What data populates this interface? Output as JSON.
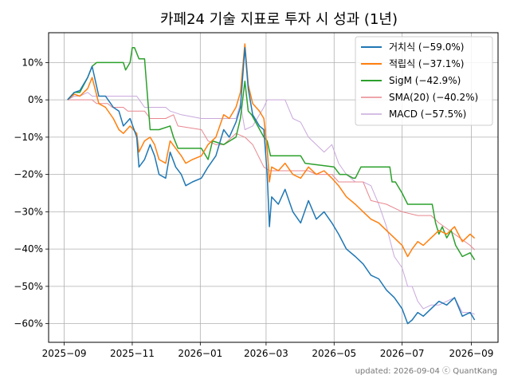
{
  "chart_data": {
    "type": "line",
    "title": "카페24 기술 지표로 투자 시 성과 (1년)",
    "xlabel": "",
    "ylabel": "",
    "footer": "updated: 2026-09-04 ⓒ QuantKang",
    "x_range": [
      "2025-08-18",
      "2026-09-25"
    ],
    "ylim": [
      -65,
      18
    ],
    "yticks": [
      10,
      0,
      -10,
      -20,
      -30,
      -40,
      -50,
      -60
    ],
    "ytick_labels": [
      "10%",
      "0%",
      "−10%",
      "−20%",
      "−30%",
      "−40%",
      "−50%",
      "−60%"
    ],
    "xticks": [
      "2025-09-01",
      "2025-11-01",
      "2026-01-01",
      "2026-03-01",
      "2026-05-01",
      "2026-07-01",
      "2026-09-01"
    ],
    "xtick_labels": [
      "2025−09",
      "2025−11",
      "2026−01",
      "2026−03",
      "2026−05",
      "2026−07",
      "2026−09"
    ],
    "grid": true,
    "legend_position": "top-right",
    "series": [
      {
        "name": "거치식 (−59.0%)",
        "color": "#1f77b4",
        "width": 1.5,
        "points": [
          [
            "2025-09-04",
            0
          ],
          [
            "2025-09-10",
            2
          ],
          [
            "2025-09-15",
            2.5
          ],
          [
            "2025-09-22",
            6
          ],
          [
            "2025-09-26",
            9
          ],
          [
            "2025-10-02",
            1
          ],
          [
            "2025-10-08",
            1
          ],
          [
            "2025-10-15",
            -2
          ],
          [
            "2025-10-20",
            -3
          ],
          [
            "2025-10-24",
            -7
          ],
          [
            "2025-10-30",
            -5
          ],
          [
            "2025-11-05",
            -10
          ],
          [
            "2025-11-07",
            -18
          ],
          [
            "2025-11-12",
            -16
          ],
          [
            "2025-11-17",
            -12
          ],
          [
            "2025-11-21",
            -15
          ],
          [
            "2025-11-25",
            -20
          ],
          [
            "2025-12-01",
            -21
          ],
          [
            "2025-12-05",
            -14
          ],
          [
            "2025-12-10",
            -18
          ],
          [
            "2025-12-15",
            -20
          ],
          [
            "2025-12-19",
            -23
          ],
          [
            "2025-12-25",
            -22
          ],
          [
            "2026-01-02",
            -21
          ],
          [
            "2026-01-08",
            -18
          ],
          [
            "2026-01-15",
            -15
          ],
          [
            "2026-01-22",
            -8
          ],
          [
            "2026-01-27",
            -10
          ],
          [
            "2026-02-02",
            -6
          ],
          [
            "2026-02-06",
            -2
          ],
          [
            "2026-02-10",
            14
          ],
          [
            "2026-02-13",
            3
          ],
          [
            "2026-02-17",
            -4
          ],
          [
            "2026-02-23",
            -7
          ],
          [
            "2026-02-27",
            -8
          ],
          [
            "2026-03-02",
            -20
          ],
          [
            "2026-03-04",
            -34
          ],
          [
            "2026-03-06",
            -26
          ],
          [
            "2026-03-12",
            -28
          ],
          [
            "2026-03-18",
            -24
          ],
          [
            "2026-03-25",
            -30
          ],
          [
            "2026-04-01",
            -33
          ],
          [
            "2026-04-08",
            -27
          ],
          [
            "2026-04-15",
            -32
          ],
          [
            "2026-04-22",
            -30
          ],
          [
            "2026-04-29",
            -33
          ],
          [
            "2026-05-05",
            -36
          ],
          [
            "2026-05-12",
            -40
          ],
          [
            "2026-05-20",
            -42
          ],
          [
            "2026-05-27",
            -44
          ],
          [
            "2026-06-03",
            -47
          ],
          [
            "2026-06-10",
            -48
          ],
          [
            "2026-06-17",
            -51
          ],
          [
            "2026-06-24",
            -53
          ],
          [
            "2026-07-01",
            -56
          ],
          [
            "2026-07-06",
            -60
          ],
          [
            "2026-07-10",
            -59
          ],
          [
            "2026-07-15",
            -57
          ],
          [
            "2026-07-20",
            -58
          ],
          [
            "2026-07-27",
            -56
          ],
          [
            "2026-08-03",
            -54
          ],
          [
            "2026-08-10",
            -55
          ],
          [
            "2026-08-17",
            -53
          ],
          [
            "2026-08-24",
            -58
          ],
          [
            "2026-08-31",
            -57
          ],
          [
            "2026-09-04",
            -59
          ]
        ]
      },
      {
        "name": "적립식 (−37.1%)",
        "color": "#ff7f0e",
        "width": 1.5,
        "points": [
          [
            "2025-09-04",
            0
          ],
          [
            "2025-09-10",
            1.5
          ],
          [
            "2025-09-15",
            1
          ],
          [
            "2025-09-22",
            3
          ],
          [
            "2025-09-26",
            6
          ],
          [
            "2025-10-02",
            -1
          ],
          [
            "2025-10-08",
            -2
          ],
          [
            "2025-10-15",
            -5
          ],
          [
            "2025-10-20",
            -8
          ],
          [
            "2025-10-24",
            -9
          ],
          [
            "2025-10-30",
            -7
          ],
          [
            "2025-11-05",
            -9
          ],
          [
            "2025-11-07",
            -14
          ],
          [
            "2025-11-12",
            -11
          ],
          [
            "2025-11-17",
            -10
          ],
          [
            "2025-11-21",
            -12
          ],
          [
            "2025-11-25",
            -16
          ],
          [
            "2025-12-01",
            -17
          ],
          [
            "2025-12-05",
            -11
          ],
          [
            "2025-12-10",
            -13
          ],
          [
            "2025-12-15",
            -15
          ],
          [
            "2025-12-19",
            -17
          ],
          [
            "2025-12-25",
            -16
          ],
          [
            "2026-01-02",
            -15
          ],
          [
            "2026-01-08",
            -12
          ],
          [
            "2026-01-15",
            -10
          ],
          [
            "2026-01-22",
            -4
          ],
          [
            "2026-01-27",
            -5
          ],
          [
            "2026-02-02",
            -2
          ],
          [
            "2026-02-06",
            2
          ],
          [
            "2026-02-10",
            15
          ],
          [
            "2026-02-13",
            4
          ],
          [
            "2026-02-17",
            -1
          ],
          [
            "2026-02-23",
            -3
          ],
          [
            "2026-02-27",
            -5
          ],
          [
            "2026-03-02",
            -13
          ],
          [
            "2026-03-04",
            -22
          ],
          [
            "2026-03-06",
            -18
          ],
          [
            "2026-03-12",
            -19
          ],
          [
            "2026-03-18",
            -17
          ],
          [
            "2026-03-25",
            -20
          ],
          [
            "2026-04-01",
            -21
          ],
          [
            "2026-04-08",
            -18
          ],
          [
            "2026-04-15",
            -20
          ],
          [
            "2026-04-22",
            -19
          ],
          [
            "2026-04-29",
            -21
          ],
          [
            "2026-05-05",
            -23
          ],
          [
            "2026-05-12",
            -26
          ],
          [
            "2026-05-20",
            -28
          ],
          [
            "2026-05-27",
            -30
          ],
          [
            "2026-06-03",
            -32
          ],
          [
            "2026-06-10",
            -33
          ],
          [
            "2026-06-17",
            -35
          ],
          [
            "2026-06-24",
            -37
          ],
          [
            "2026-07-01",
            -39
          ],
          [
            "2026-07-06",
            -42
          ],
          [
            "2026-07-10",
            -40
          ],
          [
            "2026-07-15",
            -38
          ],
          [
            "2026-07-20",
            -39
          ],
          [
            "2026-07-27",
            -37
          ],
          [
            "2026-08-03",
            -35
          ],
          [
            "2026-08-10",
            -36
          ],
          [
            "2026-08-17",
            -34
          ],
          [
            "2026-08-24",
            -38
          ],
          [
            "2026-08-31",
            -36
          ],
          [
            "2026-09-04",
            -37.1
          ]
        ]
      },
      {
        "name": "SigM (−42.9%)",
        "color": "#2ca02c",
        "width": 1.5,
        "points": [
          [
            "2025-09-04",
            0
          ],
          [
            "2025-09-10",
            2
          ],
          [
            "2025-09-15",
            2
          ],
          [
            "2025-09-22",
            6
          ],
          [
            "2025-09-26",
            9
          ],
          [
            "2025-09-30",
            10
          ],
          [
            "2025-10-24",
            10
          ],
          [
            "2025-10-26",
            8
          ],
          [
            "2025-10-30",
            10
          ],
          [
            "2025-11-01",
            14
          ],
          [
            "2025-11-03",
            14
          ],
          [
            "2025-11-07",
            11
          ],
          [
            "2025-11-12",
            11
          ],
          [
            "2025-11-17",
            -8
          ],
          [
            "2025-11-25",
            -8
          ],
          [
            "2025-12-05",
            -7
          ],
          [
            "2025-12-08",
            -10
          ],
          [
            "2025-12-12",
            -13
          ],
          [
            "2026-01-02",
            -13
          ],
          [
            "2026-01-08",
            -16
          ],
          [
            "2026-01-12",
            -11
          ],
          [
            "2026-01-22",
            -12
          ],
          [
            "2026-02-02",
            -10
          ],
          [
            "2026-02-06",
            -5
          ],
          [
            "2026-02-10",
            5
          ],
          [
            "2026-02-13",
            -3
          ],
          [
            "2026-02-16",
            -4
          ],
          [
            "2026-02-27",
            -10
          ],
          [
            "2026-03-02",
            -11
          ],
          [
            "2026-03-05",
            -15
          ],
          [
            "2026-04-01",
            -15
          ],
          [
            "2026-04-05",
            -17
          ],
          [
            "2026-05-01",
            -18
          ],
          [
            "2026-05-06",
            -20
          ],
          [
            "2026-05-12",
            -20
          ],
          [
            "2026-05-18",
            -21
          ],
          [
            "2026-05-20",
            -21
          ],
          [
            "2026-05-25",
            -18
          ],
          [
            "2026-06-20",
            -18
          ],
          [
            "2026-06-22",
            -22
          ],
          [
            "2026-06-25",
            -22
          ],
          [
            "2026-07-01",
            -25
          ],
          [
            "2026-07-06",
            -28
          ],
          [
            "2026-07-28",
            -28
          ],
          [
            "2026-07-31",
            -33
          ],
          [
            "2026-08-03",
            -36
          ],
          [
            "2026-08-06",
            -34
          ],
          [
            "2026-08-10",
            -37
          ],
          [
            "2026-08-14",
            -35
          ],
          [
            "2026-08-18",
            -39
          ],
          [
            "2026-08-24",
            -42
          ],
          [
            "2026-08-31",
            -41
          ],
          [
            "2026-09-04",
            -42.9
          ]
        ]
      },
      {
        "name": "SMA(20) (−40.2%)",
        "color": "#e8878f",
        "width": 1.0,
        "points": [
          [
            "2025-09-04",
            0
          ],
          [
            "2025-09-10",
            0
          ],
          [
            "2025-09-15",
            0
          ],
          [
            "2025-09-22",
            0
          ],
          [
            "2025-09-26",
            0
          ],
          [
            "2025-09-30",
            -1
          ],
          [
            "2025-10-10",
            -1
          ],
          [
            "2025-10-14",
            -2
          ],
          [
            "2025-10-24",
            -2
          ],
          [
            "2025-10-28",
            -3
          ],
          [
            "2025-11-07",
            -3
          ],
          [
            "2025-11-12",
            -3
          ],
          [
            "2025-11-17",
            -5
          ],
          [
            "2025-12-01",
            -5
          ],
          [
            "2025-12-08",
            -4
          ],
          [
            "2025-12-12",
            -7
          ],
          [
            "2026-01-02",
            -8
          ],
          [
            "2026-01-08",
            -11
          ],
          [
            "2026-01-15",
            -12
          ],
          [
            "2026-01-22",
            -12
          ],
          [
            "2026-02-02",
            -9
          ],
          [
            "2026-02-10",
            -10
          ],
          [
            "2026-02-17",
            -12
          ],
          [
            "2026-02-27",
            -18
          ],
          [
            "2026-03-04",
            -19
          ],
          [
            "2026-03-18",
            -19
          ],
          [
            "2026-03-25",
            -19
          ],
          [
            "2026-04-01",
            -19
          ],
          [
            "2026-04-08",
            -19
          ],
          [
            "2026-04-15",
            -20
          ],
          [
            "2026-04-29",
            -20
          ],
          [
            "2026-05-05",
            -22
          ],
          [
            "2026-05-20",
            -22
          ],
          [
            "2026-05-27",
            -22
          ],
          [
            "2026-06-03",
            -27
          ],
          [
            "2026-06-17",
            -28
          ],
          [
            "2026-07-01",
            -30
          ],
          [
            "2026-07-15",
            -31
          ],
          [
            "2026-07-27",
            -31
          ],
          [
            "2026-08-03",
            -33
          ],
          [
            "2026-08-17",
            -36
          ],
          [
            "2026-08-31",
            -39
          ],
          [
            "2026-09-04",
            -40.2
          ]
        ]
      },
      {
        "name": "MACD (−57.5%)",
        "color": "#c9a8dc",
        "width": 1.0,
        "points": [
          [
            "2025-09-04",
            0
          ],
          [
            "2025-09-10",
            1
          ],
          [
            "2025-09-15",
            1
          ],
          [
            "2025-09-22",
            2
          ],
          [
            "2025-09-26",
            1
          ],
          [
            "2025-10-02",
            1
          ],
          [
            "2025-10-15",
            1
          ],
          [
            "2025-11-05",
            1
          ],
          [
            "2025-11-12",
            -2
          ],
          [
            "2025-11-25",
            -2
          ],
          [
            "2025-12-01",
            -2
          ],
          [
            "2025-12-05",
            -3
          ],
          [
            "2025-12-15",
            -4
          ],
          [
            "2026-01-02",
            -5
          ],
          [
            "2026-01-08",
            -5
          ],
          [
            "2026-01-22",
            -5
          ],
          [
            "2026-02-02",
            -5
          ],
          [
            "2026-02-06",
            -1
          ],
          [
            "2026-02-10",
            -8
          ],
          [
            "2026-02-17",
            -7
          ],
          [
            "2026-02-27",
            -2
          ],
          [
            "2026-03-02",
            0
          ],
          [
            "2026-03-18",
            0
          ],
          [
            "2026-03-25",
            -5
          ],
          [
            "2026-04-01",
            -6
          ],
          [
            "2026-04-08",
            -10
          ],
          [
            "2026-04-15",
            -12
          ],
          [
            "2026-04-22",
            -14
          ],
          [
            "2026-04-29",
            -12
          ],
          [
            "2026-05-05",
            -17
          ],
          [
            "2026-05-12",
            -20
          ],
          [
            "2026-05-20",
            -22
          ],
          [
            "2026-05-27",
            -22
          ],
          [
            "2026-06-03",
            -23
          ],
          [
            "2026-06-10",
            -28
          ],
          [
            "2026-06-17",
            -34
          ],
          [
            "2026-06-24",
            -42
          ],
          [
            "2026-07-01",
            -45
          ],
          [
            "2026-07-06",
            -50
          ],
          [
            "2026-07-10",
            -50
          ],
          [
            "2026-07-15",
            -54
          ],
          [
            "2026-07-20",
            -56
          ],
          [
            "2026-07-27",
            -55
          ],
          [
            "2026-08-03",
            -55
          ],
          [
            "2026-08-10",
            -54
          ],
          [
            "2026-08-17",
            -53
          ],
          [
            "2026-08-24",
            -57
          ],
          [
            "2026-08-31",
            -57
          ],
          [
            "2026-09-04",
            -57.5
          ]
        ]
      }
    ]
  }
}
